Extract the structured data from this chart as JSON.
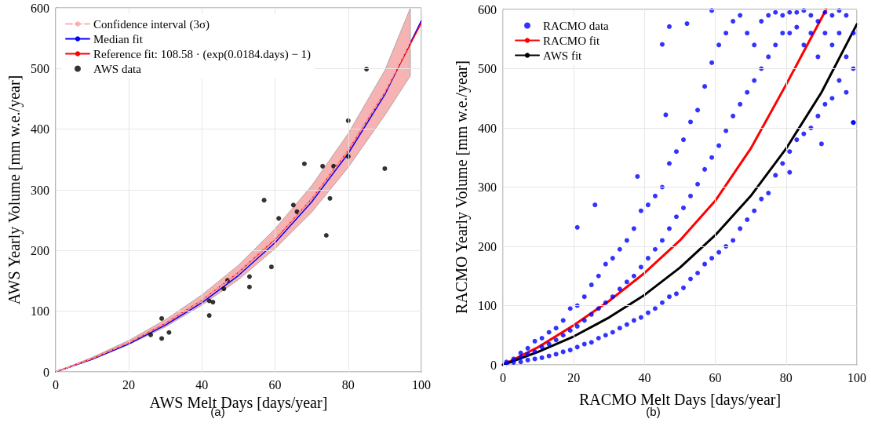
{
  "chart_data": [
    {
      "type": "line",
      "xlabel": "AWS Melt Days [days/year]",
      "ylabel": "AWS Yearly Volume [mm w.e./year]",
      "annotations": [
        "(a)"
      ],
      "xlim": [
        0,
        100
      ],
      "xticks": [
        0,
        20,
        40,
        60,
        80,
        100
      ],
      "ylim": [
        0,
        600
      ],
      "yticks": [
        0,
        100,
        200,
        300,
        400,
        500,
        600
      ],
      "grid": true,
      "legend": "top left",
      "series": [
        {
          "name": "Confidence interval (3σ)",
          "type": "line",
          "color": "#f6b3b3",
          "line_style": "dashed",
          "x": [
            0,
            10,
            20,
            30,
            40,
            50,
            60,
            70,
            80,
            90,
            97
          ],
          "values": [
            0,
            22,
            48,
            80,
            118,
            164,
            220,
            285,
            365,
            460,
            544
          ],
          "lower": [
            0,
            20,
            45,
            74,
            110,
            152,
            203,
            263,
            337,
            423,
            488
          ],
          "upper": [
            0,
            24,
            52,
            86,
            127,
            176,
            236,
            307,
            393,
            497,
            600
          ]
        },
        {
          "name": "Median fit",
          "color": "#0000ff",
          "marker": "none",
          "x": [
            0,
            10,
            20,
            30,
            40,
            50,
            60,
            70,
            80,
            90,
            100
          ],
          "values": [
            0,
            21,
            46,
            77,
            114,
            159,
            213,
            280,
            360,
            457,
            579
          ]
        },
        {
          "name": "Reference fit: 108.58 · (exp(0.0184.days) − 1)",
          "color": "#ff0000",
          "marker": "none",
          "x": [
            0,
            10,
            20,
            30,
            40,
            50,
            60,
            70,
            80,
            90,
            100
          ],
          "values": [
            0,
            22,
            48,
            80,
            118,
            164,
            219,
            285,
            365,
            460,
            575
          ]
        },
        {
          "name": "AWS data",
          "type": "scatter",
          "color": "#000000",
          "marker": "circle",
          "x": [
            26,
            29,
            29,
            31,
            42,
            42,
            43,
            46,
            47,
            53,
            53,
            57,
            59,
            61,
            65,
            66,
            68,
            73,
            74,
            75,
            76,
            80,
            80,
            85,
            90
          ],
          "values": [
            61,
            88,
            55,
            65,
            93,
            117,
            115,
            137,
            151,
            157,
            140,
            283,
            173,
            253,
            275,
            264,
            343,
            339,
            225,
            286,
            339,
            414,
            355,
            499,
            335
          ]
        }
      ]
    },
    {
      "type": "scatter",
      "xlabel": "RACMO Melt Days [days/year]",
      "ylabel": "RACMO Yearly Volume [mm w.e./year]",
      "annotations": [
        "(b)"
      ],
      "xlim": [
        0,
        100
      ],
      "xticks": [
        0,
        20,
        40,
        60,
        80,
        100
      ],
      "ylim": [
        0,
        600
      ],
      "yticks": [
        0,
        100,
        200,
        300,
        400,
        500,
        600
      ],
      "grid": true,
      "legend": "top left",
      "series": [
        {
          "name": "RACMO data",
          "color": "#0000ff",
          "marker": "circle",
          "x": [
            1,
            1,
            3,
            3,
            5,
            5,
            5,
            7,
            7,
            7,
            9,
            9,
            9,
            11,
            11,
            11,
            13,
            13,
            13,
            15,
            15,
            15,
            17,
            17,
            17,
            19,
            19,
            19,
            21,
            21,
            21,
            23,
            23,
            23,
            25,
            25,
            25,
            27,
            27,
            27,
            29,
            29,
            29,
            31,
            31,
            31,
            33,
            33,
            33,
            35,
            35,
            35,
            37,
            37,
            37,
            39,
            39,
            39,
            41,
            41,
            41,
            43,
            43,
            43,
            45,
            45,
            45,
            47,
            47,
            47,
            49,
            49,
            49,
            51,
            51,
            51,
            53,
            53,
            53,
            55,
            55,
            55,
            57,
            57,
            57,
            59,
            59,
            59,
            61,
            61,
            61,
            63,
            63,
            63,
            65,
            65,
            65,
            67,
            67,
            67,
            69,
            69,
            69,
            71,
            71,
            71,
            73,
            73,
            73,
            75,
            75,
            75,
            77,
            77,
            77,
            79,
            79,
            79,
            81,
            81,
            81,
            83,
            83,
            83,
            85,
            85,
            85,
            87,
            87,
            87,
            89,
            89,
            89,
            91,
            91,
            91,
            93,
            93,
            93,
            95,
            95,
            95,
            97,
            97,
            97,
            99,
            99,
            99,
            21,
            26,
            38,
            46,
            45,
            47,
            52,
            59,
            99,
            81,
            90
          ],
          "values": [
            2,
            5,
            4,
            10,
            5,
            12,
            20,
            8,
            18,
            28,
            10,
            22,
            40,
            12,
            30,
            45,
            15,
            35,
            55,
            18,
            42,
            62,
            22,
            50,
            75,
            25,
            58,
            95,
            30,
            65,
            100,
            35,
            75,
            115,
            38,
            85,
            135,
            45,
            95,
            150,
            50,
            105,
            170,
            55,
            115,
            180,
            62,
            128,
            195,
            68,
            140,
            210,
            75,
            150,
            230,
            80,
            165,
            260,
            88,
            180,
            270,
            95,
            195,
            285,
            105,
            210,
            300,
            115,
            230,
            340,
            120,
            250,
            360,
            130,
            265,
            380,
            145,
            285,
            410,
            155,
            305,
            430,
            170,
            330,
            470,
            180,
            350,
            510,
            190,
            370,
            540,
            200,
            395,
            560,
            210,
            420,
            580,
            230,
            440,
            590,
            245,
            460,
            560,
            260,
            480,
            540,
            280,
            500,
            580,
            290,
            520,
            590,
            320,
            540,
            595,
            340,
            560,
            590,
            360,
            560,
            595,
            380,
            570,
            595,
            390,
            540,
            598,
            400,
            560,
            590,
            420,
            520,
            580,
            440,
            560,
            595,
            450,
            540,
            590,
            480,
            560,
            598,
            460,
            520,
            590,
            409,
            500,
            560,
            232,
            270,
            318,
            422,
            541,
            571,
            576,
            598,
            409,
            325,
            373
          ]
        },
        {
          "name": "RACMO fit",
          "type": "line",
          "color": "#ff0000",
          "marker": "none",
          "x": [
            0,
            10,
            20,
            30,
            40,
            50,
            60,
            70,
            80,
            90,
            91.3
          ],
          "values": [
            0,
            30,
            67,
            108,
            155,
            210,
            277,
            365,
            473,
            585,
            600
          ]
        },
        {
          "name": "AWS fit",
          "type": "line",
          "color": "#000000",
          "marker": "none",
          "x": [
            0,
            10,
            20,
            30,
            40,
            50,
            60,
            70,
            80,
            90,
            100
          ],
          "values": [
            0,
            22,
            48,
            80,
            118,
            164,
            219,
            285,
            365,
            460,
            575
          ]
        }
      ]
    }
  ]
}
